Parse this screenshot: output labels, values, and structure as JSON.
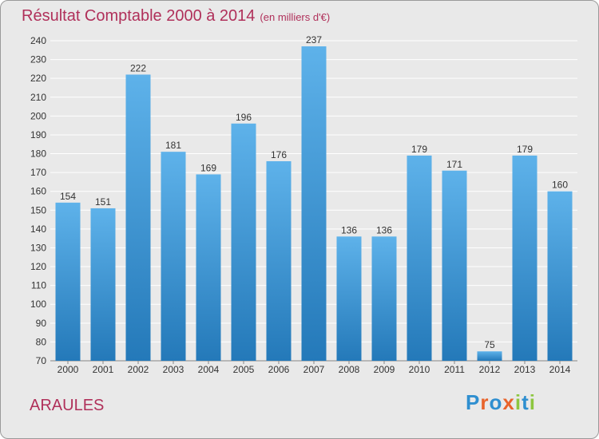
{
  "title": "Résultat Comptable 2000 à 2014",
  "unit_note": "(en milliers d'€)",
  "place_name": "ARAULES",
  "logo": {
    "text": "Proxiti",
    "letter_colors": [
      "#2f8fd0",
      "#e8632b",
      "#2f8fd0",
      "#e8632b",
      "#8dc63f",
      "#2f8fd0",
      "#8dc63f"
    ]
  },
  "colors": {
    "title": "#b0305a",
    "bar_light": "#5eb2ea",
    "bar_dark": "#2479b9",
    "plot_bg": "#e9e9e9",
    "grid": "#ffffff"
  },
  "chart_data": {
    "type": "bar",
    "title": "Résultat Comptable 2000 à 2014",
    "subtitle": "(en milliers d'€)",
    "xlabel": "",
    "ylabel": "",
    "categories": [
      "2000",
      "2001",
      "2002",
      "2003",
      "2004",
      "2005",
      "2006",
      "2007",
      "2008",
      "2009",
      "2010",
      "2011",
      "2012",
      "2013",
      "2014"
    ],
    "values": [
      154,
      151,
      222,
      181,
      169,
      196,
      176,
      237,
      136,
      136,
      179,
      171,
      75,
      179,
      160
    ],
    "ylim": [
      70,
      240
    ],
    "yticks": [
      70,
      80,
      90,
      100,
      110,
      120,
      130,
      140,
      150,
      160,
      170,
      180,
      190,
      200,
      210,
      220,
      230,
      240
    ],
    "grid": true,
    "legend": "none"
  }
}
